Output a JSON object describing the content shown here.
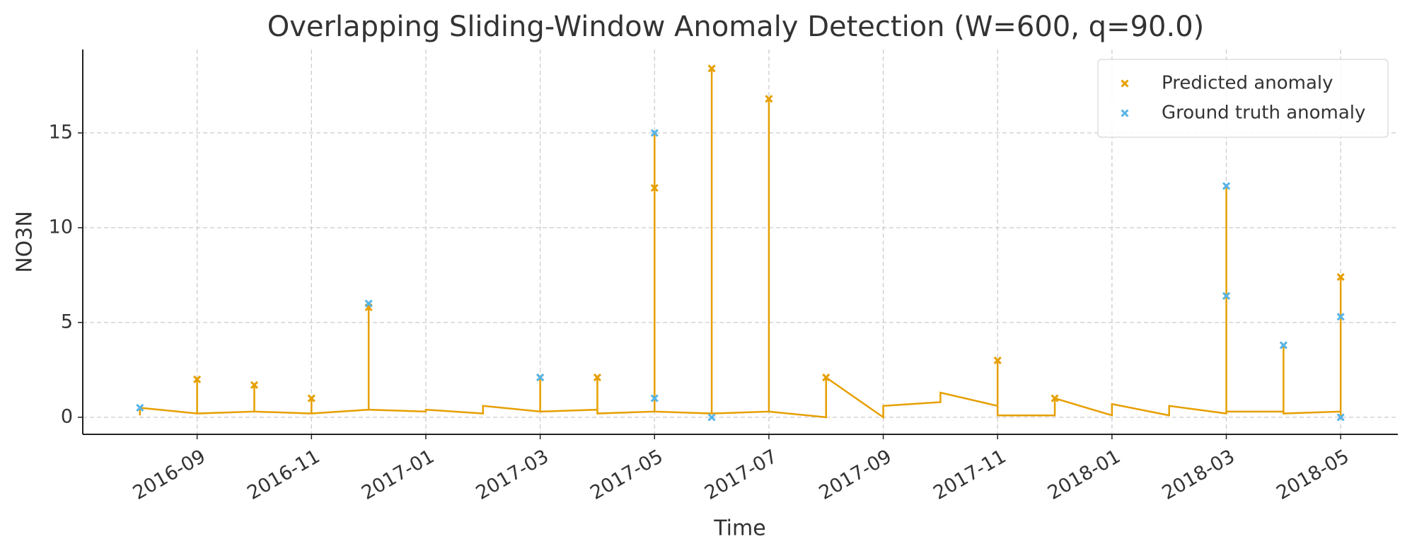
{
  "chart_data": {
    "type": "line",
    "title": "Overlapping Sliding-Window Anomaly Detection (W=600, q=90.0)",
    "x_label": "Time",
    "y_label": "NO3N",
    "xlim": [
      "2016-07",
      "2018-06"
    ],
    "ylim": [
      -0.9,
      19.4
    ],
    "xticks": [
      "2016-09",
      "2016-11",
      "2017-01",
      "2017-03",
      "2017-05",
      "2017-07",
      "2017-09",
      "2017-11",
      "2018-01",
      "2018-03",
      "2018-05"
    ],
    "yticks": [
      0,
      5,
      10,
      15
    ],
    "grid": true,
    "legend": "upper right",
    "series": [
      {
        "type": "line",
        "color": "#E69F00",
        "x": [
          "2016-08",
          "2016-08",
          "2016-09",
          "2016-09",
          "2016-09",
          "2016-10",
          "2016-10",
          "2016-10",
          "2016-11",
          "2016-11",
          "2016-11",
          "2016-12",
          "2016-12",
          "2016-12",
          "2017-01",
          "2017-01",
          "2017-02",
          "2017-02",
          "2017-03",
          "2017-03",
          "2017-03",
          "2017-04",
          "2017-04",
          "2017-04",
          "2017-05",
          "2017-05",
          "2017-05",
          "2017-06",
          "2017-06",
          "2017-06",
          "2017-07",
          "2017-07",
          "2017-07",
          "2017-08",
          "2017-08",
          "2017-09",
          "2017-09",
          "2017-10",
          "2017-10",
          "2017-11",
          "2017-11",
          "2017-11",
          "2017-12",
          "2017-12",
          "2018-01",
          "2018-01",
          "2018-02",
          "2018-02",
          "2018-03",
          "2018-03",
          "2018-03",
          "2018-04",
          "2018-04",
          "2018-04",
          "2018-05",
          "2018-05",
          "2018-05"
        ],
        "values": [
          0.1,
          0.5,
          0.2,
          2.0,
          0.2,
          0.3,
          1.7,
          0.3,
          0.2,
          1.0,
          0.2,
          0.4,
          6.0,
          0.4,
          0.3,
          0.4,
          0.2,
          0.6,
          0.3,
          2.1,
          0.3,
          0.4,
          2.1,
          0.2,
          0.3,
          15.0,
          0.3,
          0.2,
          18.4,
          0.2,
          0.3,
          16.8,
          0.3,
          0.0,
          2.1,
          0.0,
          0.6,
          0.8,
          1.3,
          0.6,
          3.0,
          0.1,
          0.1,
          1.0,
          0.1,
          0.7,
          0.1,
          0.6,
          0.2,
          12.2,
          0.3,
          0.3,
          3.8,
          0.2,
          0.3,
          7.4,
          0.0
        ]
      },
      {
        "type": "scatter",
        "name": "Predicted anomaly",
        "color": "#E69F00",
        "x": [
          "2016-09",
          "2016-10",
          "2016-11",
          "2016-12",
          "2017-03",
          "2017-04",
          "2017-05",
          "2017-06",
          "2017-07",
          "2017-08",
          "2017-11",
          "2017-12",
          "2018-03",
          "2018-04",
          "2018-05"
        ],
        "values": [
          2.0,
          1.7,
          1.0,
          5.8,
          2.1,
          2.1,
          12.1,
          18.4,
          16.8,
          2.1,
          3.0,
          1.0,
          6.4,
          3.8,
          7.4
        ]
      },
      {
        "type": "scatter",
        "name": "Ground truth anomaly",
        "color": "#56B4E9",
        "x": [
          "2016-08",
          "2016-12",
          "2017-03",
          "2017-05",
          "2017-05",
          "2017-06",
          "2018-03",
          "2018-03",
          "2018-04",
          "2018-05",
          "2018-05"
        ],
        "values": [
          0.5,
          6.0,
          2.1,
          15.0,
          1.0,
          0.0,
          12.2,
          6.4,
          3.8,
          5.3,
          0.0
        ]
      }
    ]
  }
}
